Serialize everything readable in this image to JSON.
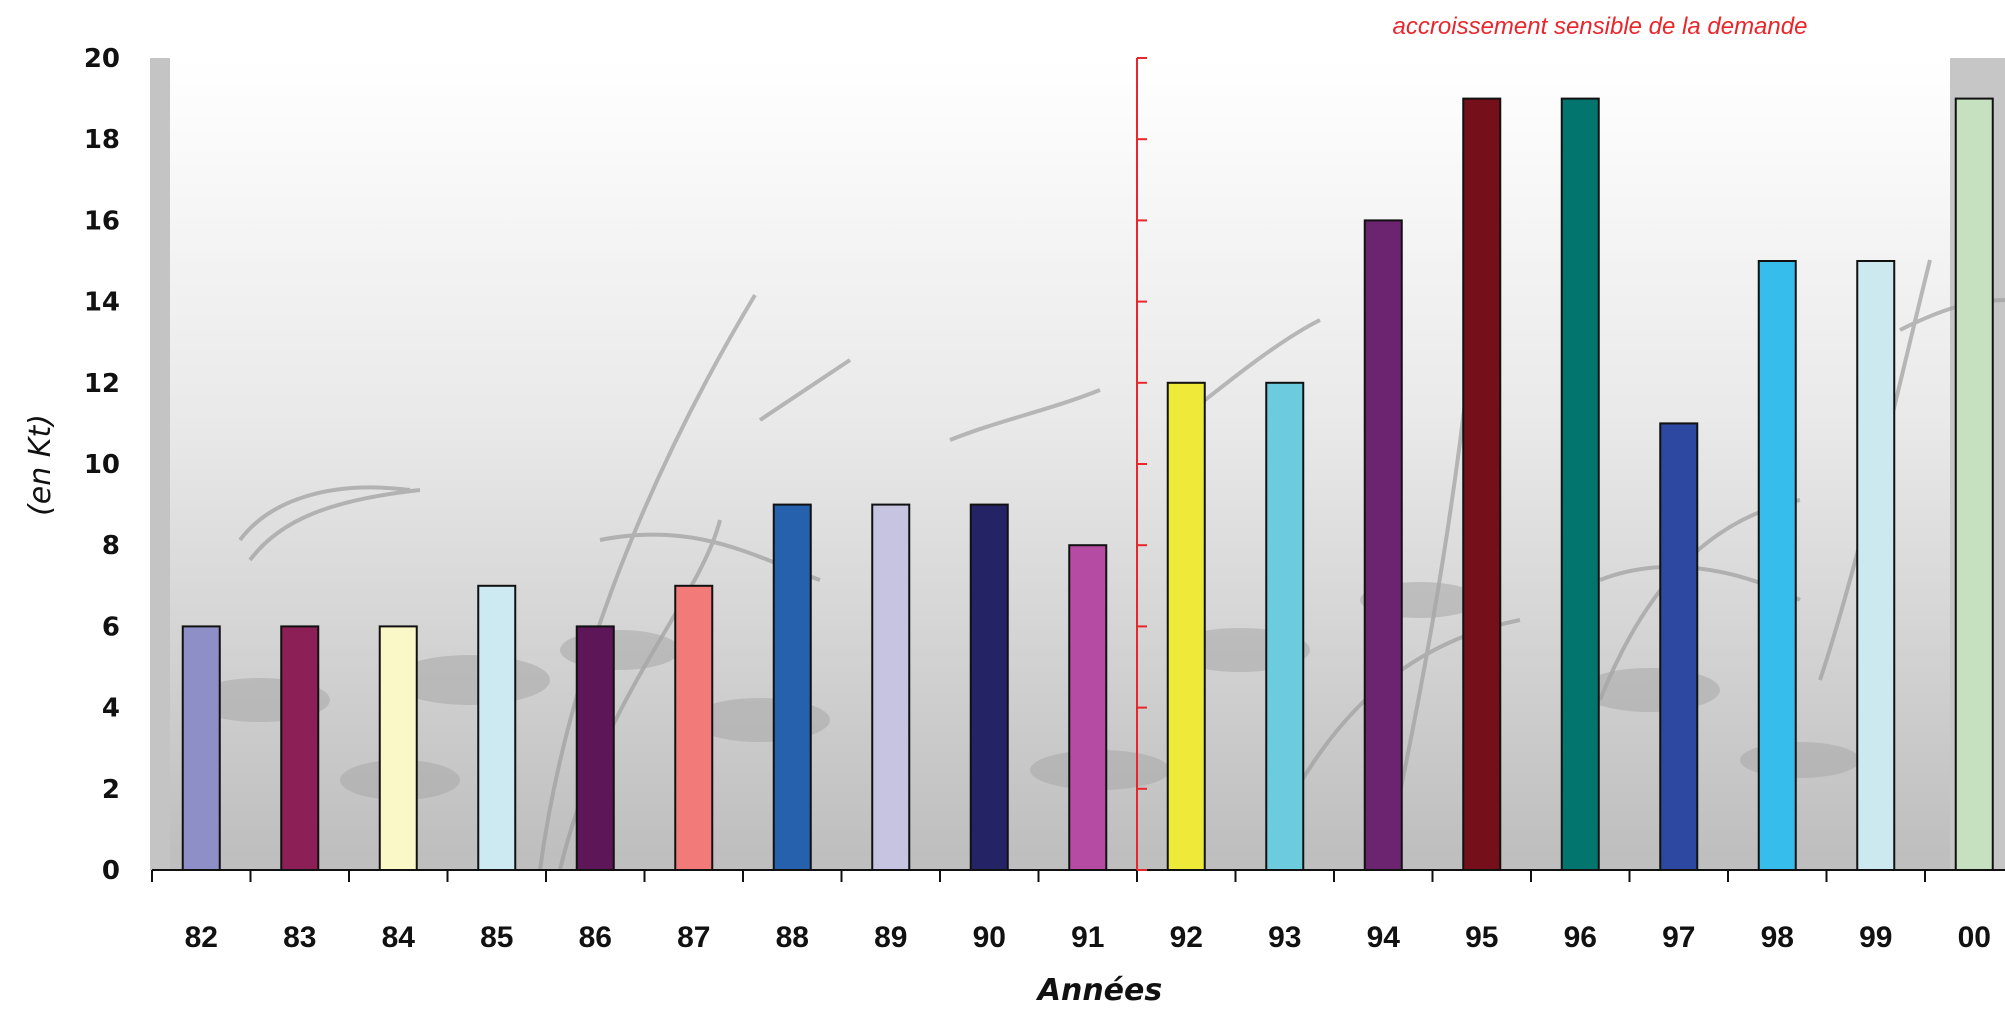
{
  "chart_data": {
    "type": "bar",
    "xlabel": "Années",
    "ylabel": "(en Kt)",
    "ylim": [
      0,
      20
    ],
    "yticks": [
      0,
      2,
      4,
      6,
      8,
      10,
      12,
      14,
      16,
      18,
      20
    ],
    "categories": [
      "82",
      "83",
      "84",
      "85",
      "86",
      "87",
      "88",
      "89",
      "90",
      "91",
      "92",
      "93",
      "94",
      "95",
      "96",
      "97",
      "98",
      "99",
      "00"
    ],
    "values": [
      6,
      6,
      6,
      7,
      6,
      7,
      9,
      9,
      9,
      8,
      12,
      12,
      16,
      19,
      19,
      11,
      15,
      15,
      19
    ],
    "colors": [
      "#8e8fc6",
      "#8b1f56",
      "#fbf8c8",
      "#cdeaf2",
      "#5d1657",
      "#f27b7a",
      "#2561ac",
      "#c7c4e2",
      "#232366",
      "#b54ba2",
      "#eeea3a",
      "#6ccbdc",
      "#6c2370",
      "#75101a",
      "#03756f",
      "#2c48a0",
      "#36bdeb",
      "#cbe9ef",
      "#c6e1bf"
    ],
    "annotation": {
      "text": "accroissement sensible de la demande",
      "divider_after_category": "91",
      "color": "#e8262b"
    },
    "grid": false
  }
}
